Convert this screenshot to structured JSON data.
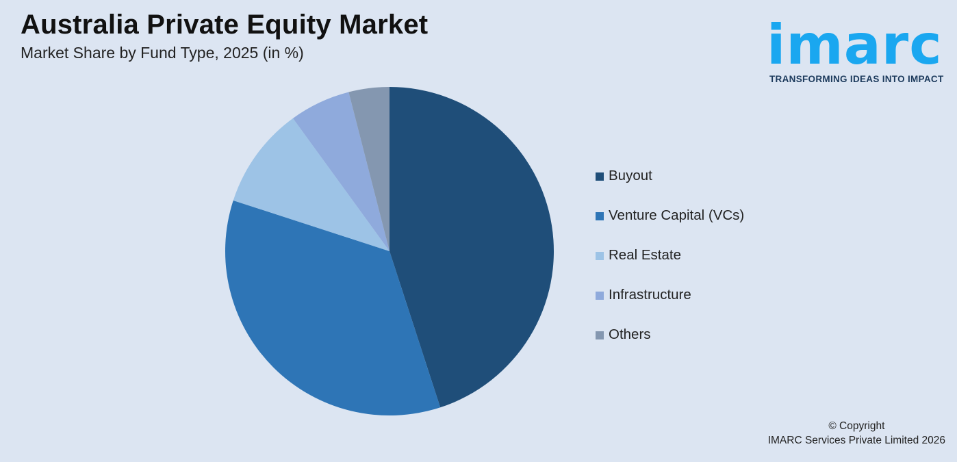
{
  "header": {
    "title": "Australia Private Equity Market",
    "subtitle": "Market Share by Fund Type, 2025 (in %)"
  },
  "logo": {
    "word": "imarc",
    "tagline": "TRANSFORMING IDEAS INTO IMPACT",
    "color": "#1aa7f0"
  },
  "chart_data": {
    "type": "pie",
    "title": "Australia Private Equity Market",
    "subtitle": "Market Share by Fund Type, 2025 (in %)",
    "categories": [
      "Buyout",
      "Venture Capital (VCs)",
      "Real Estate",
      "Infrastructure",
      "Others"
    ],
    "values": [
      45,
      35,
      10,
      6,
      4
    ],
    "colors": [
      "#1f4e79",
      "#2e75b6",
      "#9dc3e6",
      "#8faadc",
      "#8497b0"
    ],
    "legend_position": "right",
    "start_angle": "top, clockwise"
  },
  "legend": {
    "items": [
      {
        "label": "Buyout",
        "color": "#1f4e79"
      },
      {
        "label": "Venture Capital (VCs)",
        "color": "#2e75b6"
      },
      {
        "label": "Real Estate",
        "color": "#9dc3e6"
      },
      {
        "label": "Infrastructure",
        "color": "#8faadc"
      },
      {
        "label": "Others",
        "color": "#8497b0"
      }
    ]
  },
  "footer": {
    "copyright_line1": "© Copyright",
    "copyright_line2": "IMARC Services Private Limited 2026"
  }
}
